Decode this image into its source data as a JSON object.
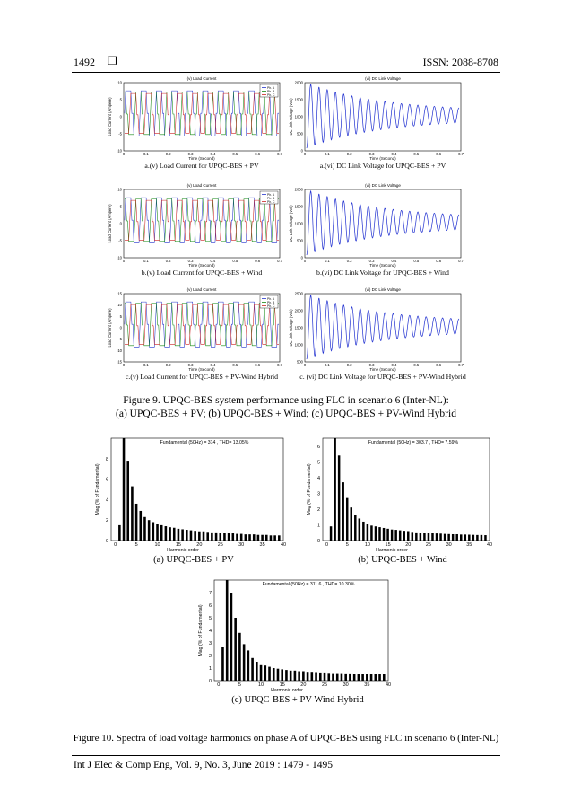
{
  "header": {
    "page_number": "1492",
    "symbol": "❒",
    "issn": "ISSN: 2088-8708"
  },
  "footer": {
    "citation": "Int J Elec & Comp Eng, Vol. 9, No. 3, June 2019 :  1479 - 1495"
  },
  "figure9": {
    "caption_line1": "Figure 9. UPQC-BES system performance using FLC in scenario 6 (Inter-NL):",
    "caption_line2": "(a) UPQC-BES + PV; (b) UPQC-BES + Wind; (c) UPQC-BES + PV-Wind Hybrid",
    "rows": [
      {
        "left": {
          "title": "(v) Load Current",
          "ylabel": "Load Current (Ampere)",
          "xlabel": "Time (Second)",
          "legend": [
            "Ph. A",
            "Ph. B",
            "Ph. C"
          ],
          "yticks": [
            "10",
            "5",
            "0",
            "-5",
            "-10"
          ],
          "xticks": [
            "0",
            "0.1",
            "0.2",
            "0.3",
            "0.4",
            "0.5",
            "0.6",
            "0.7"
          ],
          "caption": "a.(v) Load Current for UPQC-BES + PV"
        },
        "right": {
          "title": "(vi) DC Link Voltage",
          "ylabel": "DC Link Voltage (Volt)",
          "xlabel": "Time (Second)",
          "yticks": [
            "2000",
            "1500",
            "1000",
            "500",
            "0"
          ],
          "xticks": [
            "0",
            "0.1",
            "0.2",
            "0.3",
            "0.4",
            "0.5",
            "0.6",
            "0.7"
          ],
          "caption": "a.(vi) DC Link Voltage for UPQC-BES + PV"
        }
      },
      {
        "left": {
          "title": "(v) Load Current",
          "ylabel": "Load Current (Ampere)",
          "xlabel": "Time (Second)",
          "legend": [
            "Ph. A",
            "Ph. B",
            "Ph. C"
          ],
          "yticks": [
            "10",
            "5",
            "0",
            "-5",
            "-10"
          ],
          "xticks": [
            "0",
            "0.1",
            "0.2",
            "0.3",
            "0.4",
            "0.5",
            "0.6",
            "0.7"
          ],
          "caption": "b.(v) Load Current for UPQC-BES + Wind"
        },
        "right": {
          "title": "(vi) DC Link Voltage",
          "ylabel": "DC Link Voltage (Volt)",
          "xlabel": "Time (Second)",
          "yticks": [
            "2000",
            "1500",
            "1000",
            "500",
            "0"
          ],
          "xticks": [
            "0",
            "0.1",
            "0.2",
            "0.3",
            "0.4",
            "0.5",
            "0.6",
            "0.7"
          ],
          "caption": "b.(vi) DC Link Voltage for UPQC-BES + Wind"
        }
      },
      {
        "left": {
          "title": "(v) Load Current",
          "ylabel": "Load Current (Ampere)",
          "xlabel": "Time (Second)",
          "legend": [
            "Ph. A",
            "Ph. B",
            "Ph. C"
          ],
          "yticks": [
            "15",
            "10",
            "5",
            "0",
            "-5",
            "-10",
            "-15"
          ],
          "xticks": [
            "0",
            "0.1",
            "0.2",
            "0.3",
            "0.4",
            "0.5",
            "0.6",
            "0.7"
          ],
          "caption": "c.(v) Load Current for UPQC-BES + PV-Wind Hybrid"
        },
        "right": {
          "title": "(vi) DC Link Voltage",
          "ylabel": "DC Link Voltage (Volt)",
          "xlabel": "Time (Second)",
          "yticks": [
            "2500",
            "2000",
            "1500",
            "1000",
            "500"
          ],
          "xticks": [
            "0",
            "0.1",
            "0.2",
            "0.3",
            "0.4",
            "0.5",
            "0.6",
            "0.7"
          ],
          "caption": "c. (vi) DC Link Voltage for UPQC-BES + PV-Wind Hybrid"
        }
      }
    ]
  },
  "figure10": {
    "caption": "Figure 10. Spectra of load voltage harmonics on phase A of UPQC-BES using FLC in scenario 6 (Inter-NL)"
  },
  "colors": {
    "phase_a": "#2233cc",
    "phase_b": "#118811",
    "phase_c": "#cc2222",
    "dc_link": "#1f2fd0",
    "bar": "#000000"
  },
  "chart_data": [
    {
      "type": "bar",
      "title": "Fundamental (50Hz) = 314 , THD= 13.05%",
      "xlabel": "Harmonic order",
      "ylabel": "Mag (% of Fundamental)",
      "caption": "(a) UPQC-BES + PV",
      "xticks": [
        0,
        5,
        10,
        15,
        20,
        25,
        30,
        35,
        40
      ],
      "yticks": [
        0,
        2,
        4,
        6,
        8
      ],
      "xlim": [
        -1,
        40
      ],
      "ylim": [
        0,
        10
      ],
      "x": [
        1,
        2,
        3,
        4,
        5,
        6,
        7,
        8,
        9,
        10,
        11,
        12,
        13,
        14,
        15,
        16,
        17,
        18,
        19,
        20,
        21,
        22,
        23,
        24,
        25,
        26,
        27,
        28,
        29,
        30,
        31,
        32,
        33,
        34,
        35,
        36,
        37,
        38,
        39
      ],
      "values": [
        1.5,
        10.0,
        7.8,
        5.3,
        3.6,
        2.9,
        2.3,
        2.0,
        1.8,
        1.6,
        1.5,
        1.4,
        1.3,
        1.25,
        1.15,
        1.1,
        1.05,
        1.0,
        0.95,
        0.9,
        0.9,
        0.85,
        0.8,
        0.8,
        0.75,
        0.75,
        0.7,
        0.7,
        0.65,
        0.65,
        0.6,
        0.6,
        0.6,
        0.55,
        0.55,
        0.55,
        0.5,
        0.5,
        0.5
      ]
    },
    {
      "type": "bar",
      "title": "Fundamental (50Hz) = 303.7 , THD= 7.59%",
      "xlabel": "Harmonic order",
      "ylabel": "Mag (% of Fundamental)",
      "caption": "(b) UPQC-BES + Wind",
      "xticks": [
        0,
        5,
        10,
        15,
        20,
        25,
        30,
        35,
        40
      ],
      "yticks": [
        0,
        1,
        2,
        3,
        4,
        5,
        6
      ],
      "xlim": [
        -1,
        40
      ],
      "ylim": [
        0,
        6.5
      ],
      "x": [
        1,
        2,
        3,
        4,
        5,
        6,
        7,
        8,
        9,
        10,
        11,
        12,
        13,
        14,
        15,
        16,
        17,
        18,
        19,
        20,
        21,
        22,
        23,
        24,
        25,
        26,
        27,
        28,
        29,
        30,
        31,
        32,
        33,
        34,
        35,
        36,
        37,
        38,
        39
      ],
      "values": [
        0.9,
        6.6,
        5.4,
        3.7,
        2.7,
        2.1,
        1.6,
        1.4,
        1.2,
        1.05,
        0.95,
        0.9,
        0.85,
        0.8,
        0.75,
        0.7,
        0.68,
        0.65,
        0.62,
        0.6,
        0.55,
        0.52,
        0.5,
        0.5,
        0.48,
        0.46,
        0.45,
        0.44,
        0.42,
        0.41,
        0.4,
        0.4,
        0.38,
        0.38,
        0.37,
        0.36,
        0.35,
        0.35,
        0.34
      ]
    },
    {
      "type": "bar",
      "title": "Fundamental (50Hz) = 311.6 , THD= 10.30%",
      "xlabel": "Harmonic order",
      "ylabel": "Mag (% of Fundamental)",
      "caption": "(c) UPQC-BES + PV-Wind Hybrid",
      "xticks": [
        0,
        5,
        10,
        15,
        20,
        25,
        30,
        35,
        40
      ],
      "yticks": [
        0,
        1,
        2,
        3,
        4,
        5,
        6,
        7
      ],
      "xlim": [
        -1,
        40
      ],
      "ylim": [
        0,
        8
      ],
      "x": [
        1,
        2,
        3,
        4,
        5,
        6,
        7,
        8,
        9,
        10,
        11,
        12,
        13,
        14,
        15,
        16,
        17,
        18,
        19,
        20,
        21,
        22,
        23,
        24,
        25,
        26,
        27,
        28,
        29,
        30,
        31,
        32,
        33,
        34,
        35,
        36,
        37,
        38,
        39
      ],
      "values": [
        2.7,
        8.0,
        7.0,
        5.0,
        3.8,
        2.9,
        2.4,
        1.8,
        1.5,
        1.3,
        1.2,
        1.1,
        1.0,
        0.95,
        0.9,
        0.85,
        0.8,
        0.8,
        0.75,
        0.75,
        0.7,
        0.7,
        0.68,
        0.65,
        0.65,
        0.62,
        0.6,
        0.6,
        0.6,
        0.58,
        0.58,
        0.56,
        0.55,
        0.55,
        0.55,
        0.54,
        0.52,
        0.52,
        0.5
      ]
    }
  ]
}
